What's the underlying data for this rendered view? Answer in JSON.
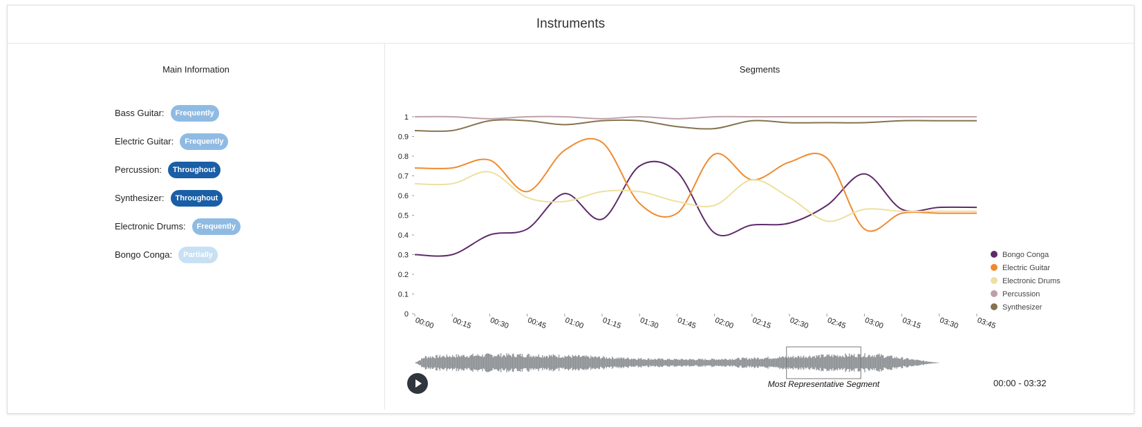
{
  "title": "Instruments",
  "main_info": {
    "title": "Main Information",
    "instruments": [
      {
        "name": "Bass Guitar:",
        "level": "Frequently",
        "color": "#8fbbe3"
      },
      {
        "name": "Electric Guitar:",
        "level": "Frequently",
        "color": "#8fbbe3"
      },
      {
        "name": "Percussion:",
        "level": "Throughout",
        "color": "#1a5ea6"
      },
      {
        "name": "Synthesizer:",
        "level": "Throughout",
        "color": "#1a5ea6"
      },
      {
        "name": "Electronic Drums:",
        "level": "Frequently",
        "color": "#8fbbe3"
      },
      {
        "name": "Bongo Conga:",
        "level": "Partially",
        "color": "#c7e0f3"
      }
    ]
  },
  "segments": {
    "title": "Segments",
    "time_range": "00:00 - 03:32",
    "representative_label": "Most Representative Segment",
    "representative_range": [
      "02:30",
      "03:00"
    ]
  },
  "chart_data": {
    "type": "line",
    "title": "Segments",
    "x": [
      "00:00",
      "00:15",
      "00:30",
      "00:45",
      "01:00",
      "01:15",
      "01:30",
      "01:45",
      "02:00",
      "02:15",
      "02:30",
      "02:45",
      "03:00",
      "03:15",
      "03:30",
      "03:45"
    ],
    "ylim": [
      0,
      1
    ],
    "yticks": [
      "0",
      "0.1",
      "0.2",
      "0.3",
      "0.4",
      "0.5",
      "0.6",
      "0.7",
      "0.8",
      "0.9",
      "1"
    ],
    "legend_position": "right",
    "series": [
      {
        "name": "Bongo Conga",
        "color": "#5f2a6a",
        "values": [
          0.3,
          0.3,
          0.4,
          0.43,
          0.61,
          0.48,
          0.75,
          0.72,
          0.41,
          0.45,
          0.46,
          0.55,
          0.71,
          0.53,
          0.54,
          0.54
        ]
      },
      {
        "name": "Electric Guitar",
        "color": "#ef8a2e",
        "values": [
          0.74,
          0.74,
          0.78,
          0.62,
          0.83,
          0.87,
          0.56,
          0.51,
          0.81,
          0.68,
          0.77,
          0.79,
          0.43,
          0.51,
          0.51,
          0.51
        ]
      },
      {
        "name": "Electronic Drums",
        "color": "#ede09e",
        "values": [
          0.66,
          0.66,
          0.72,
          0.59,
          0.57,
          0.62,
          0.62,
          0.57,
          0.55,
          0.68,
          0.59,
          0.47,
          0.53,
          0.52,
          0.52,
          0.52
        ]
      },
      {
        "name": "Percussion",
        "color": "#bfa0a8",
        "values": [
          1.0,
          1.0,
          0.99,
          1.0,
          1.0,
          0.99,
          1.0,
          0.99,
          1.0,
          1.0,
          1.0,
          1.0,
          1.0,
          1.0,
          1.0,
          1.0
        ]
      },
      {
        "name": "Synthesizer",
        "color": "#85734f",
        "values": [
          0.93,
          0.93,
          0.98,
          0.98,
          0.96,
          0.98,
          0.98,
          0.95,
          0.94,
          0.98,
          0.97,
          0.97,
          0.97,
          0.98,
          0.98,
          0.98
        ]
      }
    ]
  }
}
